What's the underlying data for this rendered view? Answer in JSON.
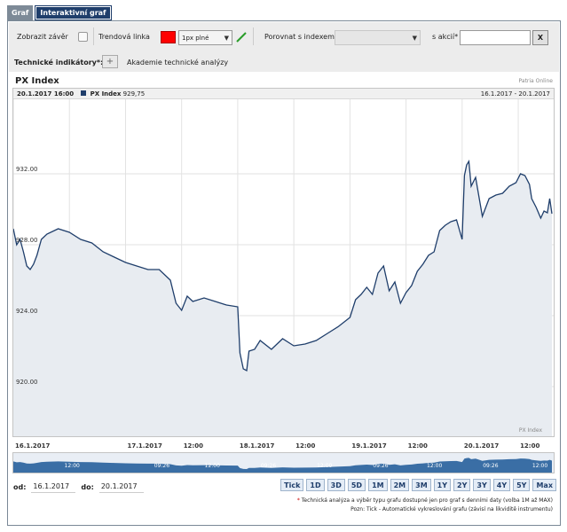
{
  "tabs": [
    {
      "label": "Graf",
      "active": false
    },
    {
      "label": "Interaktivní graf",
      "active": true
    }
  ],
  "toolbar": {
    "show_close_label": "Zobrazit závěr",
    "trendline_label": "Trendová linka",
    "trendline_color": "#ff0000",
    "line_style_value": "1px plné",
    "compare_index_label": "Porovnat s indexem*",
    "compare_index_value": "",
    "compare_stock_label": "s akcií*",
    "compare_stock_value": "",
    "clear_label": "X",
    "indicators_label": "Technické indikátory*:",
    "add_indicator_label": "+",
    "academy_label": "Akademie technické analýzy"
  },
  "chart_title": "PX Index",
  "source_label": "Patria Online",
  "info": {
    "timestamp": "20.1.2017 16:00",
    "series_label": "PX Index",
    "series_value": "929,75",
    "range": "16.1.2017 - 20.1.2017"
  },
  "watermark": "PX Index",
  "colors": {
    "line": "#1f3e6b",
    "area": "#e8ecf1",
    "grid": "#e2e2e2",
    "nav_fill": "#3a6ea5"
  },
  "xaxis_labels": [
    "16.1.2017",
    "17.1.2017",
    "12:00",
    "18.1.2017",
    "12:00",
    "19.1.2017",
    "12:00",
    "20.1.2017",
    "12:00"
  ],
  "navigator_labels": [
    "12:00",
    "09:26",
    "12:00",
    "09:26",
    "12:00",
    "09:26",
    "12:00",
    "09:26",
    "12:00"
  ],
  "from_label": "od:",
  "from_value": "16.1.2017",
  "to_label": "do:",
  "to_value": "20.1.2017",
  "periods": [
    "Tick",
    "1D",
    "3D",
    "5D",
    "1M",
    "2M",
    "3M",
    "1Y",
    "2Y",
    "3Y",
    "4Y",
    "5Y",
    "Max"
  ],
  "note1": "Technická analýza a výběr typu grafu dostupné jen pro graf s denními daty (volba 1M až MAX)",
  "note1_marker": "*",
  "note2": "Pozn: Tick - Automatické vykreslování grafu (závisí na likviditě instrumentu)",
  "chart_data": {
    "type": "area",
    "title": "PX Index",
    "xlabel": "",
    "ylabel": "",
    "ylim": [
      917.2,
      936.2
    ],
    "yticks": [
      920.0,
      924.0,
      928.0,
      932.0
    ],
    "ytick_labels": [
      "920.00",
      "924.00",
      "928.00",
      "932.00"
    ],
    "x_day_boundaries": [
      "16.1.2017",
      "17.1.2017",
      "18.1.2017",
      "19.1.2017",
      "20.1.2017"
    ],
    "series": [
      {
        "name": "PX Index",
        "points": [
          [
            0.0,
            928.9
          ],
          [
            0.03,
            928.0
          ],
          [
            0.06,
            928.3
          ],
          [
            0.09,
            927.6
          ],
          [
            0.12,
            926.8
          ],
          [
            0.15,
            926.6
          ],
          [
            0.18,
            926.9
          ],
          [
            0.21,
            927.4
          ],
          [
            0.25,
            928.3
          ],
          [
            0.3,
            928.6
          ],
          [
            0.4,
            928.9
          ],
          [
            0.5,
            928.7
          ],
          [
            0.6,
            928.3
          ],
          [
            0.7,
            928.1
          ],
          [
            0.8,
            927.6
          ],
          [
            0.9,
            927.3
          ],
          [
            1.0,
            927.0
          ],
          [
            1.1,
            926.8
          ],
          [
            1.2,
            926.6
          ],
          [
            1.3,
            926.6
          ],
          [
            1.4,
            926.0
          ],
          [
            1.45,
            924.7
          ],
          [
            1.5,
            924.3
          ],
          [
            1.55,
            925.1
          ],
          [
            1.6,
            924.8
          ],
          [
            1.7,
            925.0
          ],
          [
            1.8,
            924.8
          ],
          [
            1.9,
            924.6
          ],
          [
            2.0,
            924.5
          ],
          [
            2.02,
            921.9
          ],
          [
            2.05,
            921.0
          ],
          [
            2.08,
            920.9
          ],
          [
            2.1,
            922.0
          ],
          [
            2.15,
            922.1
          ],
          [
            2.2,
            922.6
          ],
          [
            2.3,
            922.1
          ],
          [
            2.4,
            922.7
          ],
          [
            2.5,
            922.3
          ],
          [
            2.6,
            922.4
          ],
          [
            2.7,
            922.6
          ],
          [
            2.8,
            923.0
          ],
          [
            2.9,
            923.4
          ],
          [
            3.0,
            923.9
          ],
          [
            3.05,
            924.9
          ],
          [
            3.1,
            925.2
          ],
          [
            3.15,
            925.6
          ],
          [
            3.2,
            925.2
          ],
          [
            3.25,
            926.4
          ],
          [
            3.3,
            926.8
          ],
          [
            3.35,
            925.4
          ],
          [
            3.4,
            925.9
          ],
          [
            3.45,
            924.7
          ],
          [
            3.5,
            925.3
          ],
          [
            3.55,
            925.7
          ],
          [
            3.6,
            926.5
          ],
          [
            3.65,
            926.9
          ],
          [
            3.7,
            927.4
          ],
          [
            3.75,
            927.6
          ],
          [
            3.8,
            928.8
          ],
          [
            3.85,
            929.1
          ],
          [
            3.9,
            929.3
          ],
          [
            3.95,
            929.4
          ],
          [
            4.0,
            928.3
          ],
          [
            4.02,
            931.9
          ],
          [
            4.04,
            932.5
          ],
          [
            4.06,
            932.7
          ],
          [
            4.08,
            931.3
          ],
          [
            4.12,
            931.8
          ],
          [
            4.18,
            929.6
          ],
          [
            4.24,
            930.6
          ],
          [
            4.3,
            930.8
          ],
          [
            4.36,
            930.9
          ],
          [
            4.42,
            931.3
          ],
          [
            4.48,
            931.5
          ],
          [
            4.52,
            932.0
          ],
          [
            4.56,
            931.9
          ],
          [
            4.6,
            931.4
          ],
          [
            4.62,
            930.6
          ],
          [
            4.66,
            930.1
          ],
          [
            4.7,
            929.5
          ],
          [
            4.73,
            929.9
          ],
          [
            4.76,
            929.8
          ],
          [
            4.78,
            930.6
          ],
          [
            4.8,
            929.75
          ]
        ]
      }
    ],
    "grid": true,
    "area_fill": true
  }
}
